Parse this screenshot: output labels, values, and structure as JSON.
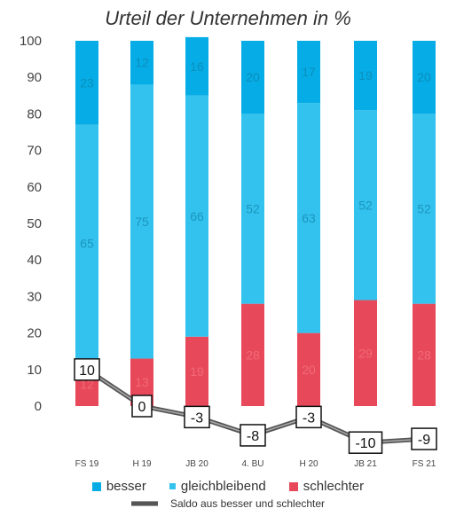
{
  "title": "Urteil der Unternehmen in %",
  "colors": {
    "besser": "#06ace5",
    "gleichbleibend": "#33c2ee",
    "schlechter": "#e8495a",
    "saldo": "#555555"
  },
  "legend": {
    "besser": "besser",
    "gleichbleibend": "gleichbleibend",
    "schlechter": "schlechter",
    "saldo": "Saldo aus besser und schlechter"
  },
  "chart_data": {
    "type": "bar",
    "stacked": true,
    "title": "Urteil der Unternehmen in %",
    "categories": [
      "FS 19",
      "H 19",
      "JB 20",
      "4. BU",
      "H 20",
      "JB 21",
      "FS 21"
    ],
    "ylim": [
      0,
      100
    ],
    "yticks": [
      0,
      10,
      20,
      30,
      40,
      50,
      60,
      70,
      80,
      90,
      100
    ],
    "series": [
      {
        "name": "schlechter",
        "values": [
          12,
          13,
          19,
          28,
          20,
          29,
          28
        ]
      },
      {
        "name": "gleichbleibend",
        "values": [
          65,
          75,
          66,
          52,
          63,
          52,
          52
        ]
      },
      {
        "name": "besser",
        "values": [
          23,
          12,
          16,
          20,
          17,
          19,
          20
        ]
      }
    ],
    "saldo": {
      "name": "Saldo aus besser und schlechter",
      "values": [
        10,
        0,
        -3,
        -8,
        -3,
        -10,
        -9
      ]
    },
    "legend_position": "bottom"
  }
}
